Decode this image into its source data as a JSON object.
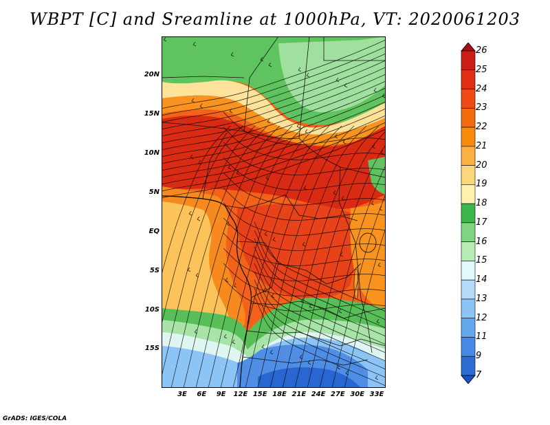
{
  "title": "WBPT [C] and Sreamline at 1000hPa, VT: 2020061203",
  "credit": "GrADS: IGES/COLA",
  "axes": {
    "lat_labels": [
      "20N",
      "15N",
      "10N",
      "5N",
      "EQ",
      "5S",
      "10S",
      "15S"
    ],
    "lon_labels": [
      "3E",
      "6E",
      "9E",
      "12E",
      "15E",
      "18E",
      "21E",
      "24E",
      "27E",
      "30E",
      "33E"
    ]
  },
  "colorbar": {
    "labels": [
      "26",
      "25",
      "24",
      "23",
      "22",
      "21",
      "20",
      "19",
      "18",
      "17",
      "16",
      "15",
      "14",
      "13",
      "12",
      "11",
      "9",
      "7"
    ],
    "colors": [
      "#a50f0f",
      "#c81e14",
      "#e02e14",
      "#ee4a14",
      "#f46a0e",
      "#fa8c0c",
      "#fdb042",
      "#fdd67c",
      "#fff0b0",
      "#39b54a",
      "#7fd47f",
      "#b4ecb4",
      "#e2f8fa",
      "#b4dcfa",
      "#8cc4f6",
      "#64a8ee",
      "#468ce6",
      "#2a6ed6",
      "#1d50c8"
    ]
  },
  "map": {
    "variable": "WBPT",
    "units": "C",
    "level": "1000hPa",
    "valid_time": "2020061203",
    "fields": "shaded wet-bulb potential temperature with streamlines"
  }
}
